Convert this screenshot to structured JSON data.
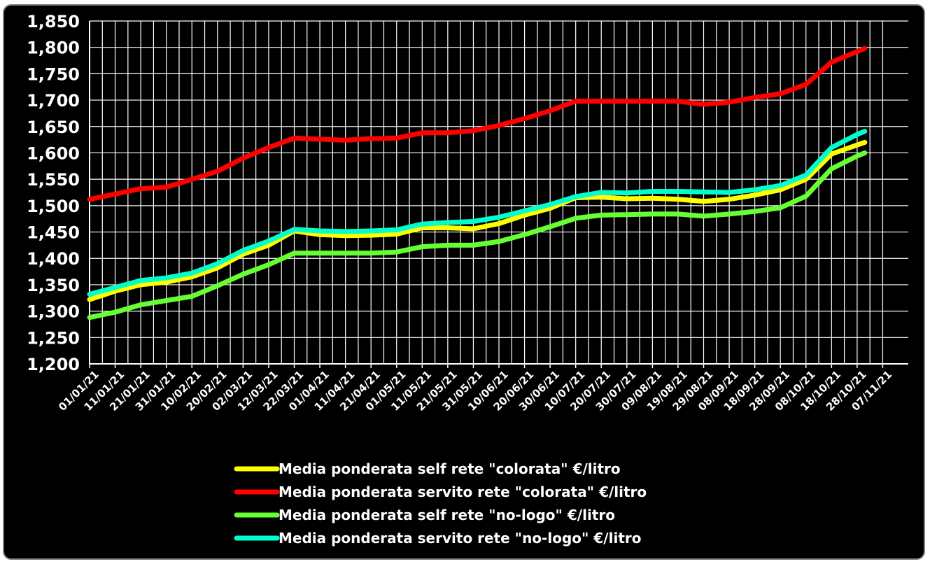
{
  "chart_data": {
    "type": "line",
    "title": "",
    "xlabel": "",
    "ylabel": "",
    "ylim": [
      1.2,
      1.85
    ],
    "y_ticks": [
      "1,200",
      "1,250",
      "1,300",
      "1,350",
      "1,400",
      "1,450",
      "1,500",
      "1,550",
      "1,600",
      "1,650",
      "1,700",
      "1,750",
      "1,800",
      "1,850"
    ],
    "x_tick_labels": [
      "01/01/21",
      "11/01/21",
      "21/01/21",
      "31/01/21",
      "10/02/21",
      "20/02/21",
      "02/03/21",
      "12/03/21",
      "22/03/21",
      "01/04/21",
      "11/04/21",
      "21/04/21",
      "01/05/21",
      "11/05/21",
      "21/05/21",
      "31/05/21",
      "10/06/21",
      "20/06/21",
      "30/06/21",
      "10/07/21",
      "20/07/21",
      "30/07/21",
      "09/08/21",
      "19/08/21",
      "29/08/21",
      "08/09/21",
      "18/09/21",
      "28/09/21",
      "08/10/21",
      "18/10/21",
      "28/10/21",
      "07/11/21"
    ],
    "x": [
      "01/01/21",
      "11/01/21",
      "21/01/21",
      "31/01/21",
      "10/02/21",
      "20/02/21",
      "02/03/21",
      "12/03/21",
      "22/03/21",
      "01/04/21",
      "11/04/21",
      "21/04/21",
      "01/05/21",
      "11/05/21",
      "21/05/21",
      "31/05/21",
      "10/06/21",
      "20/06/21",
      "30/06/21",
      "10/07/21",
      "20/07/21",
      "30/07/21",
      "09/08/21",
      "19/08/21",
      "29/08/21",
      "08/09/21",
      "18/09/21",
      "28/09/21",
      "08/10/21",
      "18/10/21",
      "28/10/21",
      "31/10/21"
    ],
    "grid": true,
    "legend_position": "bottom",
    "series": [
      {
        "name": "Media ponderata self rete \"colorata\" €/litro",
        "color": "#ffff00",
        "values": [
          1.322,
          1.338,
          1.35,
          1.355,
          1.365,
          1.382,
          1.408,
          1.425,
          1.452,
          1.445,
          1.443,
          1.444,
          1.446,
          1.458,
          1.458,
          1.456,
          1.466,
          1.482,
          1.495,
          1.515,
          1.516,
          1.513,
          1.514,
          1.512,
          1.508,
          1.512,
          1.52,
          1.53,
          1.55,
          1.598,
          1.615,
          1.62
        ]
      },
      {
        "name": "Media ponderata servito rete \"colorata\" €/litro",
        "color": "#ff0000",
        "values": [
          1.512,
          1.522,
          1.532,
          1.535,
          1.55,
          1.565,
          1.59,
          1.61,
          1.628,
          1.626,
          1.624,
          1.627,
          1.628,
          1.638,
          1.638,
          1.642,
          1.652,
          1.665,
          1.68,
          1.698,
          1.698,
          1.698,
          1.698,
          1.698,
          1.692,
          1.696,
          1.705,
          1.712,
          1.73,
          1.772,
          1.792,
          1.798
        ]
      },
      {
        "name": "Media ponderata self rete \"no-logo\" €/litro",
        "color": "#66ff33",
        "values": [
          1.288,
          1.298,
          1.312,
          1.32,
          1.328,
          1.348,
          1.37,
          1.388,
          1.41,
          1.41,
          1.41,
          1.41,
          1.412,
          1.422,
          1.425,
          1.425,
          1.432,
          1.445,
          1.46,
          1.476,
          1.482,
          1.483,
          1.484,
          1.484,
          1.48,
          1.484,
          1.489,
          1.496,
          1.518,
          1.57,
          1.594,
          1.6
        ]
      },
      {
        "name": "Media ponderata servito rete \"no-logo\" €/litro",
        "color": "#00ffcc",
        "values": [
          1.332,
          1.345,
          1.358,
          1.363,
          1.372,
          1.39,
          1.415,
          1.433,
          1.455,
          1.452,
          1.451,
          1.452,
          1.454,
          1.465,
          1.468,
          1.47,
          1.478,
          1.49,
          1.502,
          1.517,
          1.525,
          1.524,
          1.527,
          1.527,
          1.526,
          1.525,
          1.53,
          1.538,
          1.558,
          1.61,
          1.635,
          1.641
        ]
      }
    ]
  }
}
